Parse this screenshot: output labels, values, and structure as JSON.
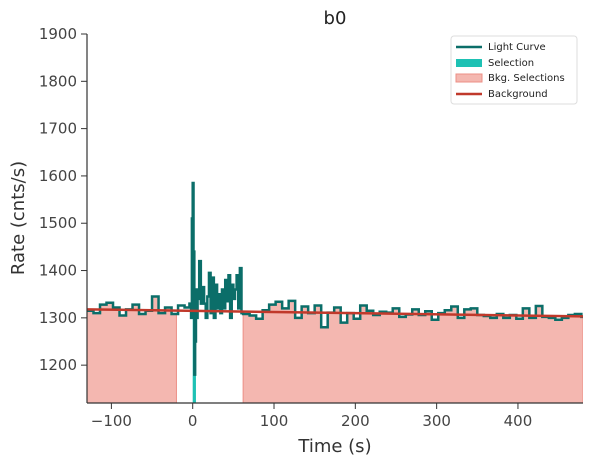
{
  "chart_data": {
    "type": "line",
    "title": "b0",
    "xlabel": "Time (s)",
    "ylabel": "Rate (cnts/s)",
    "xlim": [
      -130,
      480
    ],
    "ylim": [
      1120,
      1900
    ],
    "x_ticks": [
      -100,
      0,
      100,
      200,
      300,
      400
    ],
    "x_tick_labels": [
      "−100",
      "0",
      "100",
      "200",
      "300",
      "400"
    ],
    "y_ticks": [
      1200,
      1300,
      1400,
      1500,
      1600,
      1700,
      1800,
      1900
    ],
    "grid": false,
    "legend_placement": "top-right",
    "legend": [
      "Light Curve",
      "Selection",
      "Bkg. Selections",
      "Background"
    ],
    "colors": {
      "light_curve": "#0b6e69",
      "selection": "#1ec1b4",
      "bkg_selection_fill": "#f4b7b0",
      "bkg_selection_edge": "#ec8f86",
      "background": "#c0392b"
    },
    "background_selections": [
      [
        -130,
        -20
      ],
      [
        62,
        480
      ]
    ],
    "source_selection": [
      0,
      4
    ],
    "background_model": {
      "x": [
        -130,
        480
      ],
      "y": [
        1318,
        1303
      ]
    },
    "series": [
      {
        "name": "Light Curve",
        "x": [
          -130,
          -122,
          -114,
          -106,
          -98,
          -90,
          -82,
          -74,
          -66,
          -58,
          -50,
          -42,
          -34,
          -26,
          -18,
          -10,
          -4,
          -2,
          -1,
          0,
          1,
          2,
          3,
          4,
          5,
          6,
          8,
          10,
          12,
          14,
          16,
          18,
          20,
          22,
          24,
          26,
          28,
          30,
          32,
          34,
          36,
          38,
          40,
          42,
          44,
          46,
          48,
          50,
          52,
          54,
          56,
          58,
          60,
          62,
          70,
          78,
          86,
          94,
          102,
          110,
          118,
          126,
          134,
          142,
          150,
          158,
          166,
          174,
          182,
          190,
          198,
          206,
          214,
          222,
          230,
          238,
          246,
          254,
          262,
          270,
          278,
          286,
          294,
          302,
          310,
          318,
          326,
          334,
          342,
          350,
          358,
          366,
          374,
          382,
          390,
          398,
          406,
          414,
          422,
          430,
          438,
          446,
          454,
          462,
          470,
          478
        ],
        "y": [
          1315,
          1310,
          1328,
          1332,
          1322,
          1305,
          1318,
          1328,
          1308,
          1315,
          1345,
          1310,
          1322,
          1308,
          1326,
          1322,
          1330,
          1300,
          1510,
          1585,
          1440,
          1180,
          1250,
          1360,
          1300,
          1340,
          1420,
          1330,
          1365,
          1330,
          1300,
          1345,
          1395,
          1310,
          1385,
          1300,
          1370,
          1320,
          1350,
          1310,
          1360,
          1320,
          1380,
          1335,
          1390,
          1300,
          1370,
          1340,
          1360,
          1390,
          1320,
          1405,
          1310,
          1308,
          1305,
          1298,
          1316,
          1328,
          1334,
          1320,
          1336,
          1300,
          1324,
          1310,
          1326,
          1280,
          1311,
          1322,
          1290,
          1310,
          1298,
          1326,
          1315,
          1306,
          1313,
          1311,
          1320,
          1302,
          1307,
          1318,
          1306,
          1314,
          1296,
          1310,
          1316,
          1324,
          1300,
          1318,
          1320,
          1306,
          1304,
          1300,
          1308,
          1300,
          1306,
          1298,
          1320,
          1300,
          1325,
          1302,
          1300,
          1296,
          1300,
          1306,
          1308,
          1302
        ]
      }
    ]
  }
}
